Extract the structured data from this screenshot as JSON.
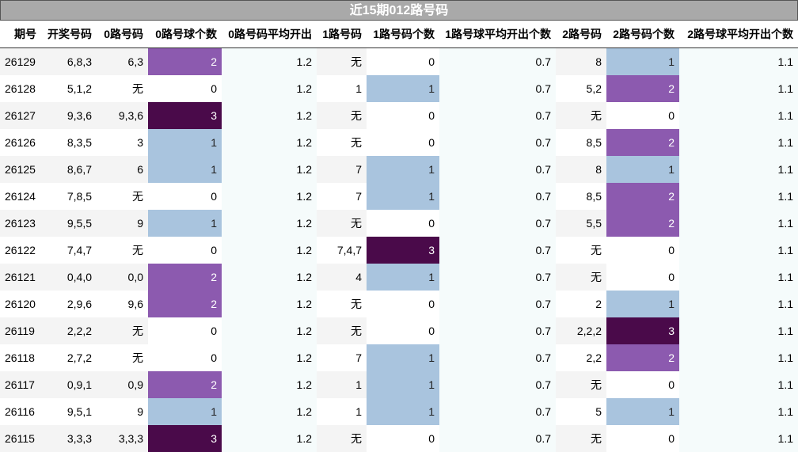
{
  "title": "近15期012路号码",
  "headers": [
    "期号",
    "开奖号码",
    "0路号码",
    "0路号球个数",
    "0路号码平均开出",
    "1路号码",
    "1路号码个数",
    "1路号球平均开出个数",
    "2路号码",
    "2路号码个数",
    "2路号球平均开出个数"
  ],
  "rows": [
    [
      "26129",
      "6,8,3",
      "6,3",
      "2",
      "1.2",
      "无",
      "0",
      "0.7",
      "8",
      "1",
      "1.1"
    ],
    [
      "26128",
      "5,1,2",
      "无",
      "0",
      "1.2",
      "1",
      "1",
      "0.7",
      "5,2",
      "2",
      "1.1"
    ],
    [
      "26127",
      "9,3,6",
      "9,3,6",
      "3",
      "1.2",
      "无",
      "0",
      "0.7",
      "无",
      "0",
      "1.1"
    ],
    [
      "26126",
      "8,3,5",
      "3",
      "1",
      "1.2",
      "无",
      "0",
      "0.7",
      "8,5",
      "2",
      "1.1"
    ],
    [
      "26125",
      "8,6,7",
      "6",
      "1",
      "1.2",
      "7",
      "1",
      "0.7",
      "8",
      "1",
      "1.1"
    ],
    [
      "26124",
      "7,8,5",
      "无",
      "0",
      "1.2",
      "7",
      "1",
      "0.7",
      "8,5",
      "2",
      "1.1"
    ],
    [
      "26123",
      "9,5,5",
      "9",
      "1",
      "1.2",
      "无",
      "0",
      "0.7",
      "5,5",
      "2",
      "1.1"
    ],
    [
      "26122",
      "7,4,7",
      "无",
      "0",
      "1.2",
      "7,4,7",
      "3",
      "0.7",
      "无",
      "0",
      "1.1"
    ],
    [
      "26121",
      "0,4,0",
      "0,0",
      "2",
      "1.2",
      "4",
      "1",
      "0.7",
      "无",
      "0",
      "1.1"
    ],
    [
      "26120",
      "2,9,6",
      "9,6",
      "2",
      "1.2",
      "无",
      "0",
      "0.7",
      "2",
      "1",
      "1.1"
    ],
    [
      "26119",
      "2,2,2",
      "无",
      "0",
      "1.2",
      "无",
      "0",
      "0.7",
      "2,2,2",
      "3",
      "1.1"
    ],
    [
      "26118",
      "2,7,2",
      "无",
      "0",
      "1.2",
      "7",
      "1",
      "0.7",
      "2,2",
      "2",
      "1.1"
    ],
    [
      "26117",
      "0,9,1",
      "0,9",
      "2",
      "1.2",
      "1",
      "1",
      "0.7",
      "无",
      "0",
      "1.1"
    ],
    [
      "26116",
      "9,5,1",
      "9",
      "1",
      "1.2",
      "1",
      "1",
      "0.7",
      "5",
      "1",
      "1.1"
    ],
    [
      "26115",
      "3,3,3",
      "3,3,3",
      "3",
      "1.2",
      "无",
      "0",
      "0.7",
      "无",
      "0",
      "1.1"
    ]
  ],
  "colors": {
    "level1": "#a9c4de",
    "level2": "#8c5aaf",
    "level3": "#4a0a4a"
  }
}
